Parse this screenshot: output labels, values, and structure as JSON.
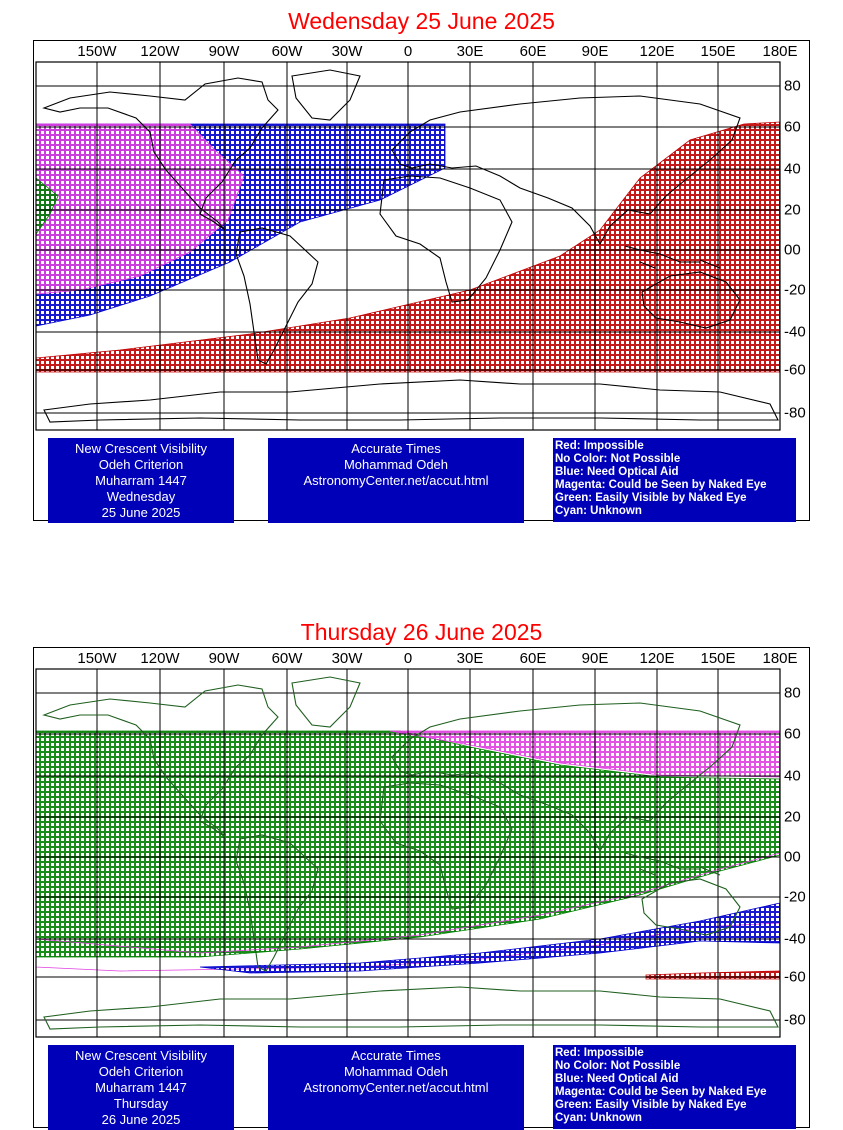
{
  "panels": [
    {
      "title": "Wedensday 25 June 2025",
      "info_left": [
        "New Crescent Visibility",
        "Odeh Criterion",
        "Muharram 1447",
        "Wednesday",
        "25 June 2025"
      ],
      "info_mid": [
        "Accurate Times",
        "Mohammad Odeh",
        "AstronomyCenter.net/accut.html"
      ],
      "legend": [
        "Red: Impossible",
        "No Color: Not Possible",
        "Blue: Need Optical Aid",
        "Magenta: Could be Seen by Naked Eye",
        "Green: Easily Visible by Naked Eye",
        "Cyan: Unknown"
      ]
    },
    {
      "title": "Thursday 26 June 2025",
      "info_left": [
        "New Crescent Visibility",
        "Odeh Criterion",
        "Muharram 1447",
        "Thursday",
        "26 June 2025"
      ],
      "info_mid": [
        "Accurate Times",
        "Mohammad Odeh",
        "AstronomyCenter.net/accut.html"
      ],
      "legend": [
        "Red: Impossible",
        "No Color: Not Possible",
        "Blue: Need Optical Aid",
        "Magenta: Could be Seen by Naked Eye",
        "Green: Easily Visible by Naked Eye",
        "Cyan: Unknown"
      ]
    }
  ],
  "axes": {
    "lon_labels": [
      "150W",
      "120W",
      "90W",
      "60W",
      "30W",
      "0",
      "30E",
      "60E",
      "90E",
      "120E",
      "150E",
      "180E"
    ],
    "lat_labels": [
      "80",
      "60",
      "40",
      "20",
      "00",
      "-20",
      "-40",
      "-60",
      "-80"
    ]
  },
  "colors": {
    "title": "#ff0000",
    "info_bg": "#0000b8",
    "impossible": "#c00000",
    "optical_aid": "#0000cc",
    "naked_eye": "#e040e0",
    "easily_visible": "#008000"
  }
}
